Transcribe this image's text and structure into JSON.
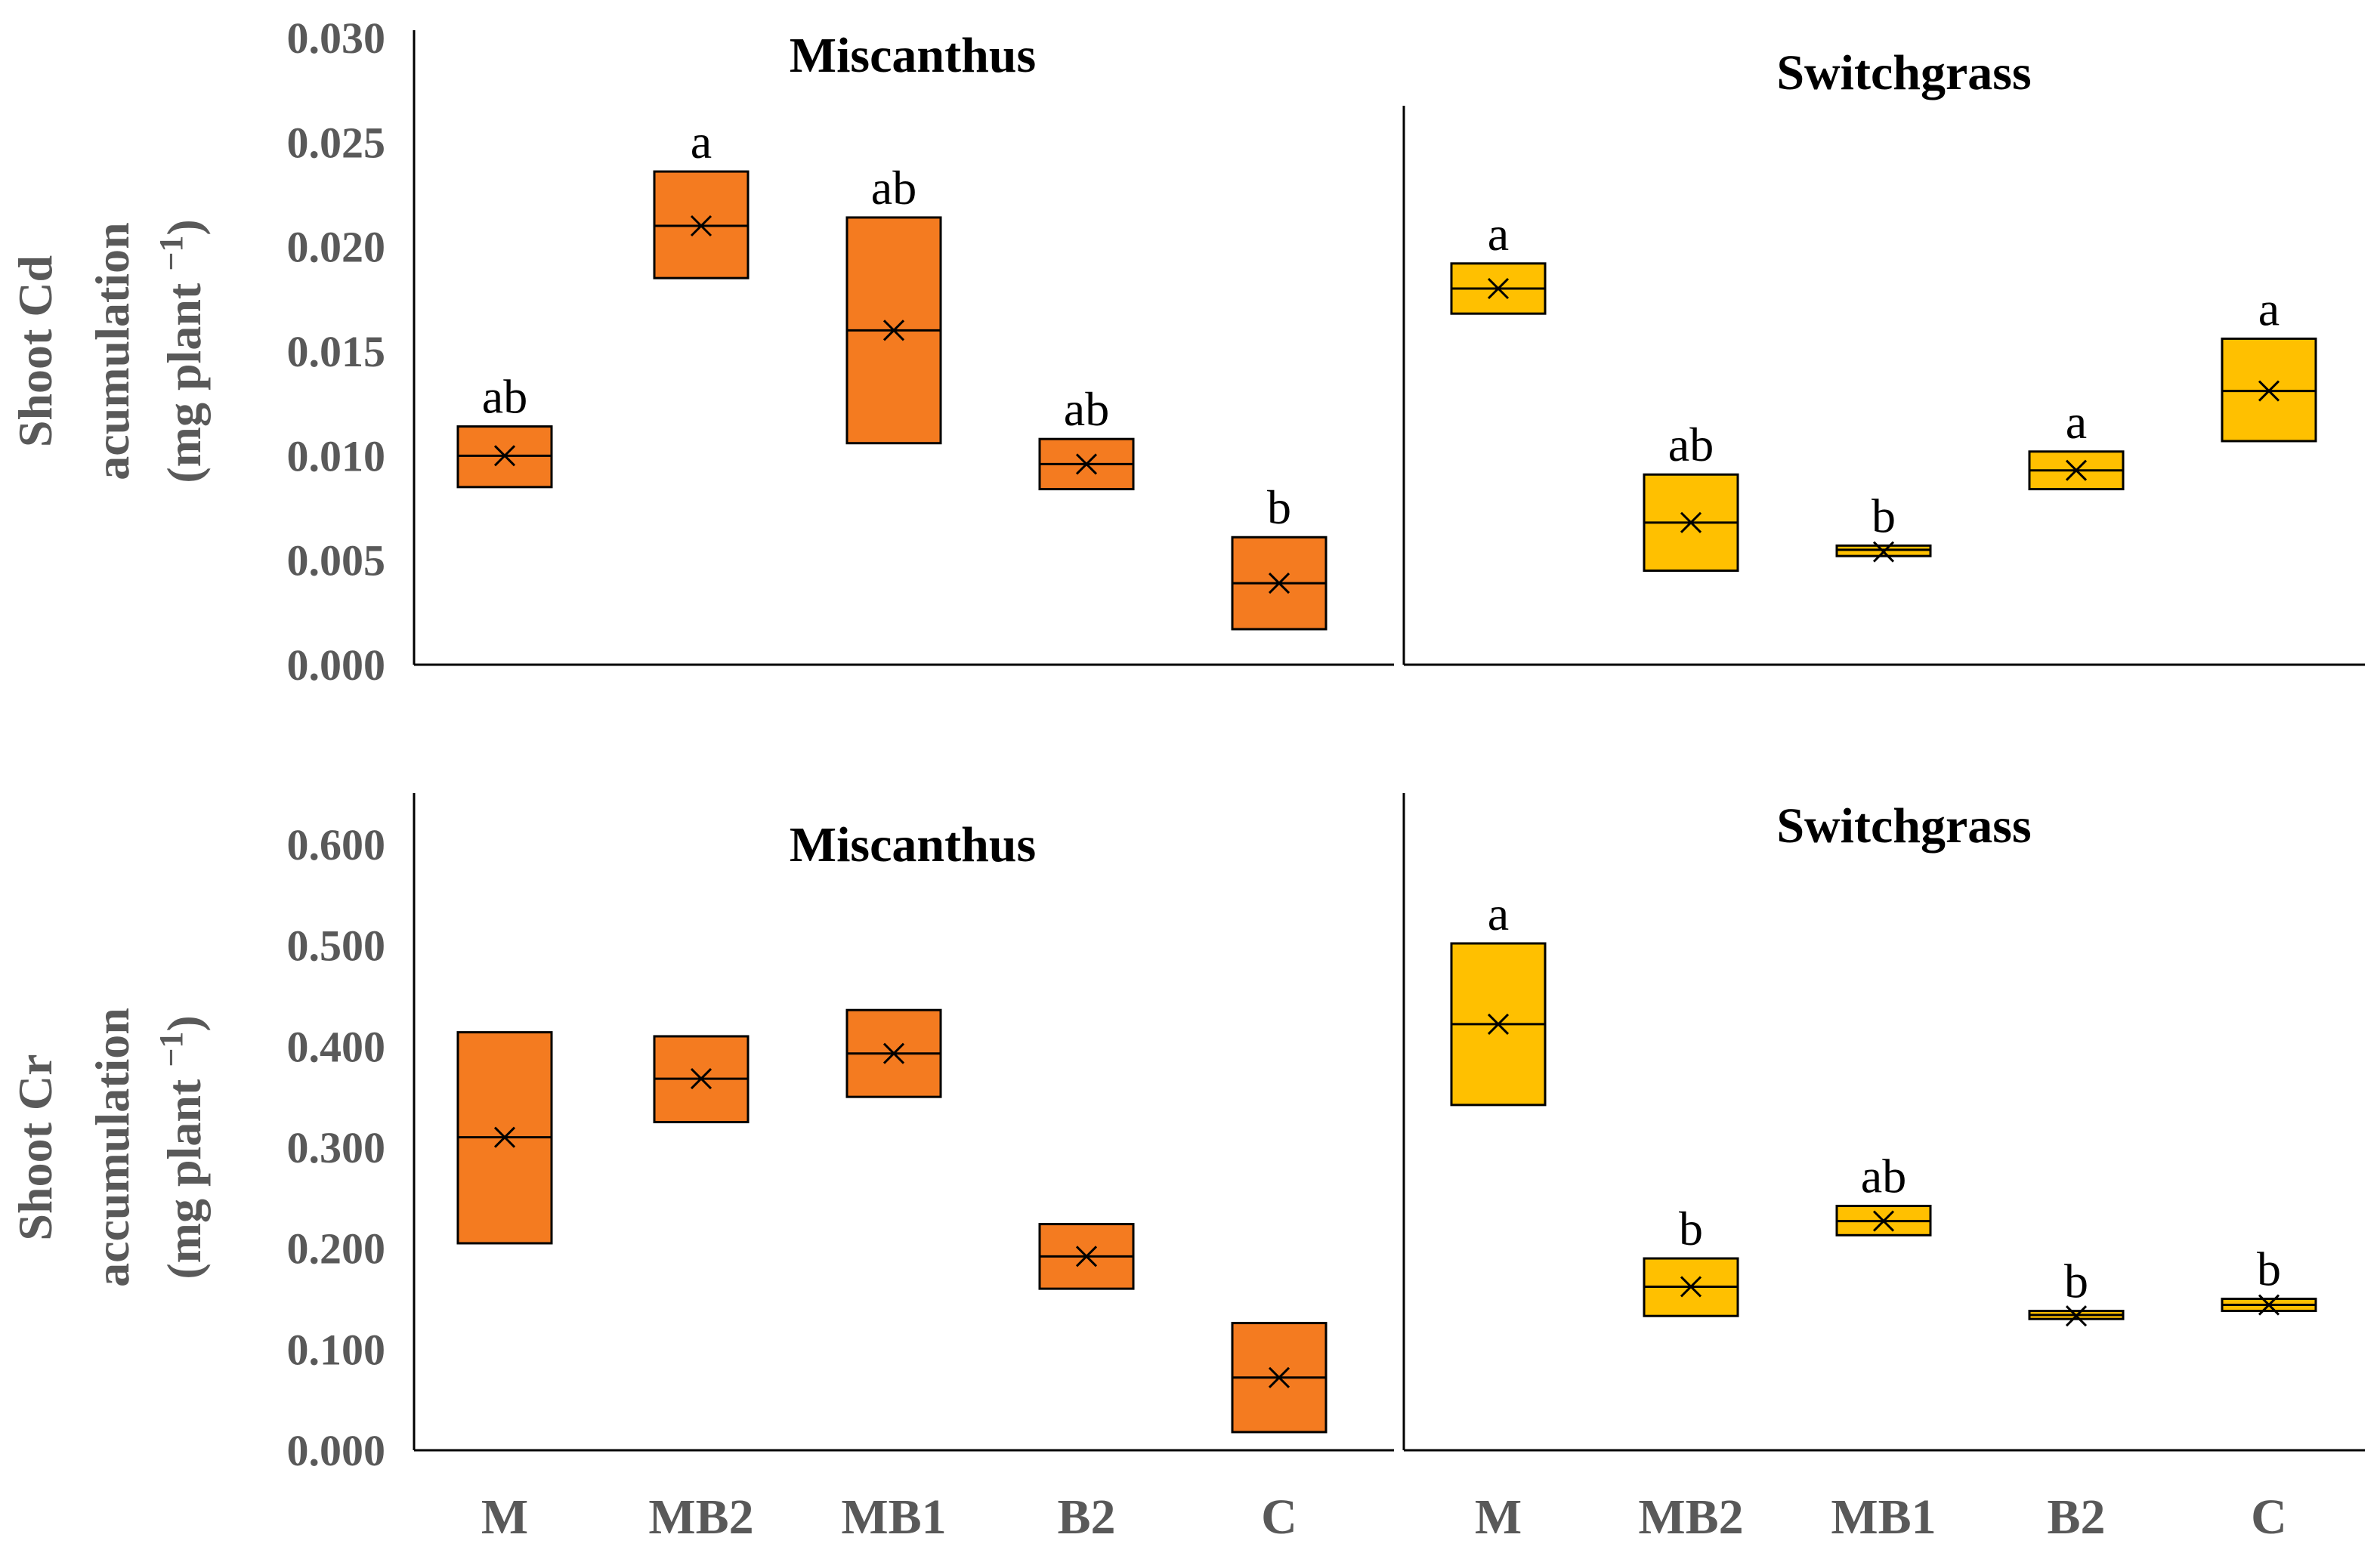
{
  "chart_data": [
    {
      "type": "box",
      "id": "cd",
      "ylabel_line1": "Shoot Cd",
      "ylabel_line2": "acumulation",
      "ylabel_line3": "(mg plant",
      "ylabel_exp": "−1",
      "ylabel_close": ")",
      "ylim": [
        0,
        0.03
      ],
      "yticks": [
        "0.000",
        "0.005",
        "0.010",
        "0.015",
        "0.020",
        "0.025",
        "0.030"
      ],
      "panels": [
        {
          "id": "cd-miscanthus",
          "title": "Miscanthus",
          "color": "#F47B20",
          "categories": [
            "M",
            "MB2",
            "MB1",
            "B2",
            "C"
          ],
          "boxes": [
            {
              "q1": 0.0085,
              "median": 0.01,
              "q3": 0.0114,
              "mean": 0.01,
              "letter": "ab"
            },
            {
              "q1": 0.0185,
              "median": 0.021,
              "q3": 0.0236,
              "mean": 0.021,
              "letter": "a"
            },
            {
              "q1": 0.0106,
              "median": 0.016,
              "q3": 0.0214,
              "mean": 0.016,
              "letter": "ab"
            },
            {
              "q1": 0.0084,
              "median": 0.0096,
              "q3": 0.0108,
              "mean": 0.0096,
              "letter": "ab"
            },
            {
              "q1": 0.0017,
              "median": 0.0039,
              "q3": 0.0061,
              "mean": 0.0039,
              "letter": "b"
            }
          ]
        },
        {
          "id": "cd-switchgrass",
          "title": "Switchgrass",
          "color": "#FFC000",
          "categories": [
            "M",
            "MB2",
            "MB1",
            "B2",
            "C"
          ],
          "boxes": [
            {
              "q1": 0.0168,
              "median": 0.018,
              "q3": 0.0192,
              "mean": 0.018,
              "letter": "a"
            },
            {
              "q1": 0.0045,
              "median": 0.0068,
              "q3": 0.0091,
              "mean": 0.0068,
              "letter": "ab"
            },
            {
              "q1": 0.0052,
              "median": 0.0055,
              "q3": 0.0057,
              "mean": 0.0054,
              "letter": "b"
            },
            {
              "q1": 0.0084,
              "median": 0.0093,
              "q3": 0.0102,
              "mean": 0.0093,
              "letter": "a"
            },
            {
              "q1": 0.0107,
              "median": 0.0131,
              "q3": 0.0156,
              "mean": 0.0131,
              "letter": "a"
            }
          ]
        }
      ]
    },
    {
      "type": "box",
      "id": "cr",
      "ylabel_line1": "Shoot Cr",
      "ylabel_line2": "accumulation",
      "ylabel_line3": "(mg plant",
      "ylabel_exp": "−1",
      "ylabel_close": ")",
      "ylim": [
        0,
        0.65
      ],
      "yticks": [
        "0.000",
        "0.100",
        "0.200",
        "0.300",
        "0.400",
        "0.500",
        "0.600"
      ],
      "panels": [
        {
          "id": "cr-miscanthus",
          "title": "Miscanthus",
          "color": "#F47B20",
          "categories": [
            "M",
            "MB2",
            "MB1",
            "B2",
            "C"
          ],
          "boxes": [
            {
              "q1": 0.205,
              "median": 0.31,
              "q3": 0.414,
              "mean": 0.31,
              "letter": ""
            },
            {
              "q1": 0.325,
              "median": 0.368,
              "q3": 0.41,
              "mean": 0.368,
              "letter": ""
            },
            {
              "q1": 0.35,
              "median": 0.393,
              "q3": 0.436,
              "mean": 0.393,
              "letter": ""
            },
            {
              "q1": 0.16,
              "median": 0.192,
              "q3": 0.224,
              "mean": 0.192,
              "letter": ""
            },
            {
              "q1": 0.018,
              "median": 0.072,
              "q3": 0.126,
              "mean": 0.072,
              "letter": ""
            }
          ]
        },
        {
          "id": "cr-switchgrass",
          "title": "Switchgrass",
          "color": "#FFC000",
          "categories": [
            "M",
            "MB2",
            "MB1",
            "B2",
            "C"
          ],
          "boxes": [
            {
              "q1": 0.342,
              "median": 0.422,
              "q3": 0.502,
              "mean": 0.422,
              "letter": "a"
            },
            {
              "q1": 0.133,
              "median": 0.162,
              "q3": 0.19,
              "mean": 0.162,
              "letter": "b"
            },
            {
              "q1": 0.213,
              "median": 0.227,
              "q3": 0.242,
              "mean": 0.227,
              "letter": "ab"
            },
            {
              "q1": 0.13,
              "median": 0.134,
              "q3": 0.138,
              "mean": 0.133,
              "letter": "b"
            },
            {
              "q1": 0.138,
              "median": 0.144,
              "q3": 0.15,
              "mean": 0.144,
              "letter": "b"
            }
          ]
        }
      ]
    }
  ]
}
